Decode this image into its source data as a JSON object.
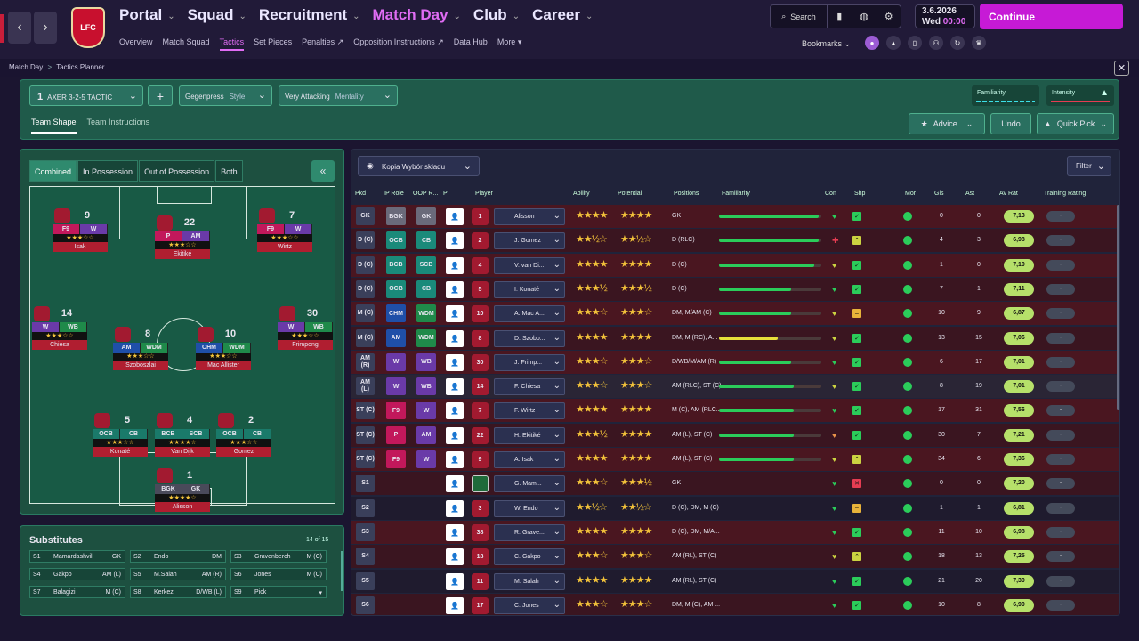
{
  "header": {
    "crest_label": "LFC",
    "main_nav": [
      {
        "label": "Portal",
        "active": false
      },
      {
        "label": "Squad",
        "active": false
      },
      {
        "label": "Recruitment",
        "active": false
      },
      {
        "label": "Match Day",
        "active": true
      },
      {
        "label": "Club",
        "active": false
      },
      {
        "label": "Career",
        "active": false
      }
    ],
    "sub_nav": [
      {
        "label": "Overview",
        "active": false
      },
      {
        "label": "Match Squad",
        "active": false
      },
      {
        "label": "Tactics",
        "active": true
      },
      {
        "label": "Set Pieces",
        "active": false
      },
      {
        "label": "Penalties ↗",
        "active": false
      },
      {
        "label": "Opposition Instructions ↗",
        "active": false
      },
      {
        "label": "Data Hub",
        "active": false
      },
      {
        "label": "More ▾",
        "active": false
      }
    ],
    "search_label": "Search",
    "date": "3.6.2026",
    "day": "Wed",
    "time": "00:00",
    "continue_label": "Continue",
    "bookmarks_label": "Bookmarks"
  },
  "breadcrumb": {
    "items": [
      "Match Day",
      "Tactics Planner"
    ],
    "sep": ">"
  },
  "tactic_bar": {
    "tactic_number": "1",
    "tactic_name": "AXER 3-2-5 TACTIC",
    "style_value": "Gegenpress",
    "style_label": "Style",
    "mentality_value": "Very Attacking",
    "mentality_label": "Mentality",
    "familiarity_label": "Familiarity",
    "intensity_label": "Intensity",
    "tabs": [
      {
        "label": "Team Shape",
        "active": true
      },
      {
        "label": "Team Instructions",
        "active": false
      }
    ],
    "advice_label": "Advice",
    "undo_label": "Undo",
    "quick_pick_label": "Quick Pick"
  },
  "pitch_panel": {
    "toggles": [
      {
        "label": "Combined",
        "active": true
      },
      {
        "label": "In Possession",
        "active": false
      },
      {
        "label": "Out of Possession",
        "active": false
      },
      {
        "label": "Both",
        "active": false
      }
    ],
    "players": [
      {
        "num": "9",
        "roles": [
          "F9",
          "W"
        ],
        "stars": "★★★☆☆",
        "name": "Isak",
        "colors": [
          "#c2185b",
          "#6a3aa8"
        ]
      },
      {
        "num": "22",
        "roles": [
          "P",
          "AM"
        ],
        "stars": "★★★☆☆",
        "name": "Ekitiké",
        "colors": [
          "#c2185b",
          "#6a3aa8"
        ]
      },
      {
        "num": "7",
        "roles": [
          "F9",
          "W"
        ],
        "stars": "★★★☆☆",
        "name": "Wirtz",
        "colors": [
          "#c2185b",
          "#6a3aa8"
        ]
      },
      {
        "num": "14",
        "roles": [
          "W",
          "WB"
        ],
        "stars": "★★★☆☆",
        "name": "Chiesa",
        "colors": [
          "#6a3aa8",
          "#1f8a4a"
        ]
      },
      {
        "num": "30",
        "roles": [
          "W",
          "WB"
        ],
        "stars": "★★★☆☆",
        "name": "Frimpong",
        "colors": [
          "#6a3aa8",
          "#1f8a4a"
        ]
      },
      {
        "num": "8",
        "roles": [
          "AM",
          "WDM"
        ],
        "stars": "★★★☆☆",
        "name": "Szoboszlai",
        "colors": [
          "#1f4fa8",
          "#1f8a4a"
        ]
      },
      {
        "num": "10",
        "roles": [
          "CHM",
          "WDM"
        ],
        "stars": "★★★☆☆",
        "name": "Mac Allister",
        "colors": [
          "#1f4fa8",
          "#1f8a4a"
        ]
      },
      {
        "num": "5",
        "roles": [
          "OCB",
          "CB"
        ],
        "stars": "★★★☆☆",
        "name": "Konaté",
        "colors": [
          "#1a7a6a",
          "#1a7a6a"
        ]
      },
      {
        "num": "4",
        "roles": [
          "BCB",
          "SCB"
        ],
        "stars": "★★★★☆",
        "name": "Van Dijk",
        "colors": [
          "#1a7a6a",
          "#1a7a6a"
        ]
      },
      {
        "num": "2",
        "roles": [
          "OCB",
          "CB"
        ],
        "stars": "★★★☆☆",
        "name": "Gomez",
        "colors": [
          "#1a7a6a",
          "#1a7a6a"
        ]
      },
      {
        "num": "1",
        "roles": [
          "BGK",
          "GK"
        ],
        "stars": "★★★★☆",
        "name": "Alisson",
        "colors": [
          "#4a4a5a",
          "#4a4a5a"
        ]
      }
    ]
  },
  "substitutes": {
    "title": "Substitutes",
    "count": "14 of 15",
    "items": [
      {
        "slot": "S1",
        "name": "Mamardashvili",
        "pos": "GK"
      },
      {
        "slot": "S2",
        "name": "Endo",
        "pos": "DM"
      },
      {
        "slot": "S3",
        "name": "Gravenberch",
        "pos": "M (C)"
      },
      {
        "slot": "S4",
        "name": "Gakpo",
        "pos": "AM (L)"
      },
      {
        "slot": "S5",
        "name": "M.Salah",
        "pos": "AM (R)"
      },
      {
        "slot": "S6",
        "name": "Jones",
        "pos": "M (C)"
      },
      {
        "slot": "S7",
        "name": "Balagizi",
        "pos": "M (C)"
      },
      {
        "slot": "S8",
        "name": "Kerkez",
        "pos": "D/WB (L)"
      },
      {
        "slot": "S9",
        "name": "Pick",
        "pos": "▾"
      }
    ]
  },
  "table": {
    "view_label": "Kopia Wybór składu",
    "filter_label": "Filter",
    "columns": [
      "Pkd",
      "IP Role",
      "OOP R...",
      "PI",
      "Player",
      "Ability",
      "Potential",
      "Positions",
      "Familiarity",
      "Con",
      "Shp",
      "Mor",
      "Gls",
      "Ast",
      "Av Rat",
      "Training Rating"
    ],
    "rows": [
      {
        "pkd": "GK",
        "ip": "BGK",
        "oop": "GK",
        "ipc": "#6a6a7a",
        "oopc": "#6a6a7a",
        "num": "1",
        "name": "Alisson",
        "abil": "★★★★",
        "pot": "★★★★",
        "pos": "GK",
        "fam": 0.97,
        "famc": "#2bcc5a",
        "con": "♥",
        "conc": "#2bcc5a",
        "shp": "✓",
        "shpc": "#2bcc5a",
        "gls": "0",
        "ast": "0",
        "rat": "7,13",
        "train": "-",
        "bg": "#4a1620"
      },
      {
        "pkd": "D (C)",
        "ip": "OCB",
        "oop": "CB",
        "ipc": "#1a8a7a",
        "oopc": "#1a8a7a",
        "num": "2",
        "name": "J. Gomez",
        "abil": "★★½☆",
        "pot": "★★½☆",
        "pos": "D (RLC)",
        "fam": 0.97,
        "famc": "#2bcc5a",
        "con": "✚",
        "conc": "#e63c52",
        "shp": "⌃",
        "shpc": "#cbd341",
        "gls": "4",
        "ast": "3",
        "rat": "6,98",
        "train": "-",
        "bg": "#3a1520"
      },
      {
        "pkd": "D (C)",
        "ip": "BCB",
        "oop": "SCB",
        "ipc": "#1a8a7a",
        "oopc": "#1a8a7a",
        "num": "4",
        "name": "V. van Di...",
        "abil": "★★★★",
        "pot": "★★★★",
        "pos": "D (C)",
        "fam": 0.93,
        "famc": "#2bcc5a",
        "con": "♥",
        "conc": "#cbd341",
        "shp": "✓",
        "shpc": "#2bcc5a",
        "gls": "1",
        "ast": "0",
        "rat": "7,10",
        "train": "-",
        "bg": "#4a1620"
      },
      {
        "pkd": "D (C)",
        "ip": "OCB",
        "oop": "CB",
        "ipc": "#1a8a7a",
        "oopc": "#1a8a7a",
        "num": "5",
        "name": "I. Konaté",
        "abil": "★★★½",
        "pot": "★★★½",
        "pos": "D (C)",
        "fam": 0.7,
        "famc": "#2bcc5a",
        "con": "♥",
        "conc": "#2bcc5a",
        "shp": "✓",
        "shpc": "#2bcc5a",
        "gls": "7",
        "ast": "1",
        "rat": "7,11",
        "train": "-",
        "bg": "#3a1520"
      },
      {
        "pkd": "M (C)",
        "ip": "CHM",
        "oop": "WDM",
        "ipc": "#1f4fa8",
        "oopc": "#1f8a4a",
        "num": "10",
        "name": "A. Mac A...",
        "abil": "★★★☆",
        "pot": "★★★☆",
        "pos": "DM, M/AM (C)",
        "fam": 0.7,
        "famc": "#2bcc5a",
        "con": "♥",
        "conc": "#cbd341",
        "shp": "–",
        "shpc": "#e8b33a",
        "gls": "10",
        "ast": "9",
        "rat": "6,87",
        "train": "-",
        "bg": "#4a1620"
      },
      {
        "pkd": "M (C)",
        "ip": "AM",
        "oop": "WDM",
        "ipc": "#1f4fa8",
        "oopc": "#1f8a4a",
        "num": "8",
        "name": "D. Szobo...",
        "abil": "★★★★",
        "pot": "★★★★",
        "pos": "DM, M (RC), A...",
        "fam": 0.57,
        "famc": "#e6e03a",
        "con": "♥",
        "conc": "#cbd341",
        "shp": "✓",
        "shpc": "#2bcc5a",
        "gls": "13",
        "ast": "15",
        "rat": "7,06",
        "train": "-",
        "bg": "#3a1520"
      },
      {
        "pkd": "AM (R)",
        "ip": "W",
        "oop": "WB",
        "ipc": "#6a3aa8",
        "oopc": "#6a3aa8",
        "num": "30",
        "name": "J. Frimp...",
        "abil": "★★★☆",
        "pot": "★★★☆",
        "pos": "D/WB/M/AM (R)",
        "fam": 0.7,
        "famc": "#2bcc5a",
        "con": "♥",
        "conc": "#2bcc5a",
        "shp": "✓",
        "shpc": "#2bcc5a",
        "gls": "6",
        "ast": "17",
        "rat": "7,01",
        "train": "-",
        "bg": "#4a1620"
      },
      {
        "pkd": "AM (L)",
        "ip": "W",
        "oop": "WB",
        "ipc": "#6a3aa8",
        "oopc": "#6a3aa8",
        "num": "14",
        "name": "F. Chiesa",
        "abil": "★★★☆",
        "pot": "★★★☆",
        "pos": "AM (RLC), ST (C)",
        "fam": 0.73,
        "famc": "#2bcc5a",
        "con": "♥",
        "conc": "#cbd341",
        "shp": "✓",
        "shpc": "#2bcc5a",
        "gls": "8",
        "ast": "19",
        "rat": "7,01",
        "train": "-",
        "bg": "#2a2535"
      },
      {
        "pkd": "ST (C)",
        "ip": "F9",
        "oop": "W",
        "ipc": "#c2185b",
        "oopc": "#6a3aa8",
        "num": "7",
        "name": "F. Wirtz",
        "abil": "★★★★",
        "pot": "★★★★",
        "pos": "M (C), AM (RLC...",
        "fam": 0.73,
        "famc": "#2bcc5a",
        "con": "♥",
        "conc": "#2bcc5a",
        "shp": "✓",
        "shpc": "#2bcc5a",
        "gls": "17",
        "ast": "31",
        "rat": "7,56",
        "train": "-",
        "bg": "#4a1620"
      },
      {
        "pkd": "ST (C)",
        "ip": "P",
        "oop": "AM",
        "ipc": "#c2185b",
        "oopc": "#6a3aa8",
        "num": "22",
        "name": "H. Ekitiké",
        "abil": "★★★½",
        "pot": "★★★★",
        "pos": "AM (L), ST (C)",
        "fam": 0.73,
        "famc": "#2bcc5a",
        "con": "♥",
        "conc": "#e8934a",
        "shp": "✓",
        "shpc": "#2bcc5a",
        "gls": "30",
        "ast": "7",
        "rat": "7,21",
        "train": "-",
        "bg": "#3a1520"
      },
      {
        "pkd": "ST (C)",
        "ip": "F9",
        "oop": "W",
        "ipc": "#c2185b",
        "oopc": "#6a3aa8",
        "num": "9",
        "name": "A. Isak",
        "abil": "★★★★",
        "pot": "★★★★",
        "pos": "AM (L), ST (C)",
        "fam": 0.73,
        "famc": "#2bcc5a",
        "con": "♥",
        "conc": "#cbd341",
        "shp": "⌃",
        "shpc": "#cbd341",
        "gls": "34",
        "ast": "6",
        "rat": "7,36",
        "train": "-",
        "bg": "#4a1620"
      },
      {
        "pkd": "S1",
        "ip": "",
        "oop": "",
        "ipc": "",
        "oopc": "",
        "num": "",
        "name": "G. Mam...",
        "abil": "★★★☆",
        "pot": "★★★½",
        "pos": "GK",
        "fam": 0,
        "famc": "#2bcc5a",
        "con": "♥",
        "conc": "#2bcc5a",
        "shp": "✕",
        "shpc": "#e63c52",
        "gls": "0",
        "ast": "0",
        "rat": "7,20",
        "train": "-",
        "bg": "#3a1520"
      },
      {
        "pkd": "S2",
        "ip": "",
        "oop": "",
        "ipc": "",
        "oopc": "",
        "num": "3",
        "name": "W. Endo",
        "abil": "★★½☆",
        "pot": "★★½☆",
        "pos": "D (C), DM, M (C)",
        "fam": 0,
        "famc": "#2bcc5a",
        "con": "♥",
        "conc": "#2bcc5a",
        "shp": "–",
        "shpc": "#e8b33a",
        "gls": "1",
        "ast": "1",
        "rat": "6,81",
        "train": "-",
        "bg": "#1f1b2e"
      },
      {
        "pkd": "S3",
        "ip": "",
        "oop": "",
        "ipc": "",
        "oopc": "",
        "num": "38",
        "name": "R. Grave...",
        "abil": "★★★★",
        "pot": "★★★★",
        "pos": "D (C), DM, M/A...",
        "fam": 0,
        "famc": "#2bcc5a",
        "con": "♥",
        "conc": "#2bcc5a",
        "shp": "✓",
        "shpc": "#2bcc5a",
        "gls": "11",
        "ast": "10",
        "rat": "6,98",
        "train": "-",
        "bg": "#4a1620"
      },
      {
        "pkd": "S4",
        "ip": "",
        "oop": "",
        "ipc": "",
        "oopc": "",
        "num": "18",
        "name": "C. Gakpo",
        "abil": "★★★☆",
        "pot": "★★★☆",
        "pos": "AM (RL), ST (C)",
        "fam": 0,
        "famc": "#2bcc5a",
        "con": "♥",
        "conc": "#cbd341",
        "shp": "⌃",
        "shpc": "#cbd341",
        "gls": "18",
        "ast": "13",
        "rat": "7,25",
        "train": "-",
        "bg": "#3a1520"
      },
      {
        "pkd": "S5",
        "ip": "",
        "oop": "",
        "ipc": "",
        "oopc": "",
        "num": "11",
        "name": "M. Salah",
        "abil": "★★★★",
        "pot": "★★★★",
        "pos": "AM (RL), ST (C)",
        "fam": 0,
        "famc": "#2bcc5a",
        "con": "♥",
        "conc": "#2bcc5a",
        "shp": "✓",
        "shpc": "#2bcc5a",
        "gls": "21",
        "ast": "20",
        "rat": "7,30",
        "train": "-",
        "bg": "#1f1b2e"
      },
      {
        "pkd": "S6",
        "ip": "",
        "oop": "",
        "ipc": "",
        "oopc": "",
        "num": "17",
        "name": "C. Jones",
        "abil": "★★★☆",
        "pot": "★★★☆",
        "pos": "DM, M (C), AM ...",
        "fam": 0,
        "famc": "#2bcc5a",
        "con": "♥",
        "conc": "#2bcc5a",
        "shp": "✓",
        "shpc": "#2bcc5a",
        "gls": "10",
        "ast": "8",
        "rat": "6,90",
        "train": "-",
        "bg": "#3a1520"
      }
    ]
  }
}
